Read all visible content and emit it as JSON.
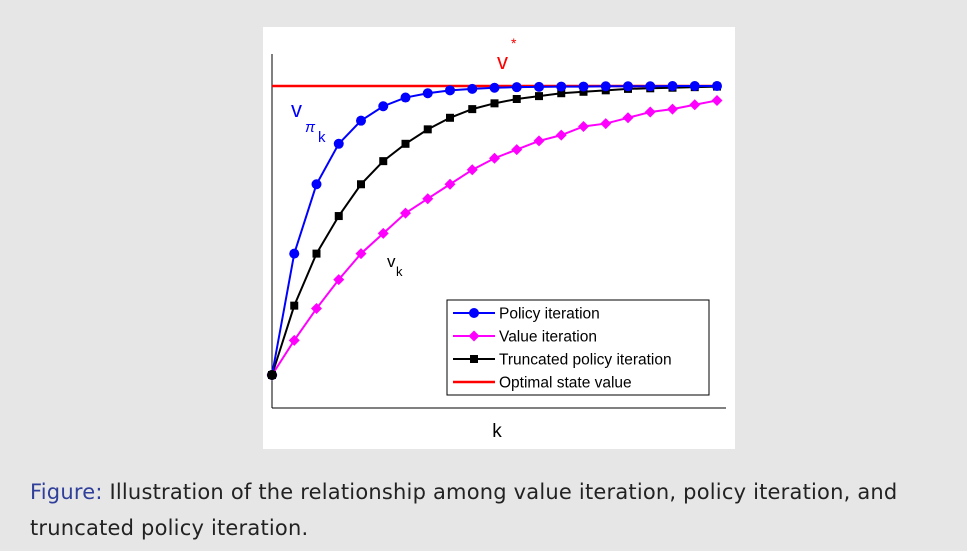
{
  "caption": {
    "label": "Figure:",
    "text": " Illustration of the relationship among value iteration, policy iteration, and truncated policy iteration."
  },
  "chart_data": {
    "type": "line",
    "title": "",
    "xlabel": "k",
    "ylabel": "",
    "xlim": [
      0,
      20
    ],
    "ylim": [
      0,
      1.1
    ],
    "grid": false,
    "legend_position": "bottom-right",
    "x": [
      0,
      1,
      2,
      3,
      4,
      5,
      6,
      7,
      8,
      9,
      10,
      11,
      12,
      13,
      14,
      15,
      16,
      17,
      18,
      19,
      20
    ],
    "series": [
      {
        "name": "Policy iteration",
        "color": "#0000ff",
        "marker": "circle",
        "values": [
          0,
          0.42,
          0.66,
          0.8,
          0.88,
          0.93,
          0.96,
          0.975,
          0.985,
          0.99,
          0.994,
          0.996,
          0.997,
          0.998,
          0.998,
          0.999,
          0.999,
          0.999,
          1.0,
          1.0,
          1.0
        ]
      },
      {
        "name": "Value iteration",
        "color": "#ff00ff",
        "marker": "diamond",
        "values": [
          0,
          0.12,
          0.23,
          0.33,
          0.42,
          0.49,
          0.56,
          0.61,
          0.66,
          0.71,
          0.75,
          0.78,
          0.81,
          0.83,
          0.86,
          0.87,
          0.89,
          0.91,
          0.92,
          0.935,
          0.95
        ]
      },
      {
        "name": "Truncated policy iteration",
        "color": "#000000",
        "marker": "square",
        "values": [
          0,
          0.24,
          0.42,
          0.55,
          0.66,
          0.74,
          0.8,
          0.85,
          0.89,
          0.92,
          0.94,
          0.955,
          0.965,
          0.975,
          0.98,
          0.985,
          0.99,
          0.992,
          0.994,
          0.996,
          0.998
        ]
      },
      {
        "name": "Optimal state value",
        "color": "#ff0000",
        "marker": "none",
        "values": [
          1,
          1,
          1,
          1,
          1,
          1,
          1,
          1,
          1,
          1,
          1,
          1,
          1,
          1,
          1,
          1,
          1,
          1,
          1,
          1,
          1
        ]
      }
    ],
    "annotations": {
      "v_star": {
        "base": "v",
        "sup": "*"
      },
      "v_pi_k": {
        "base": "v",
        "sub1": "π",
        "sub2": "k"
      },
      "v_k": {
        "base": "v",
        "sub": "k"
      }
    }
  }
}
